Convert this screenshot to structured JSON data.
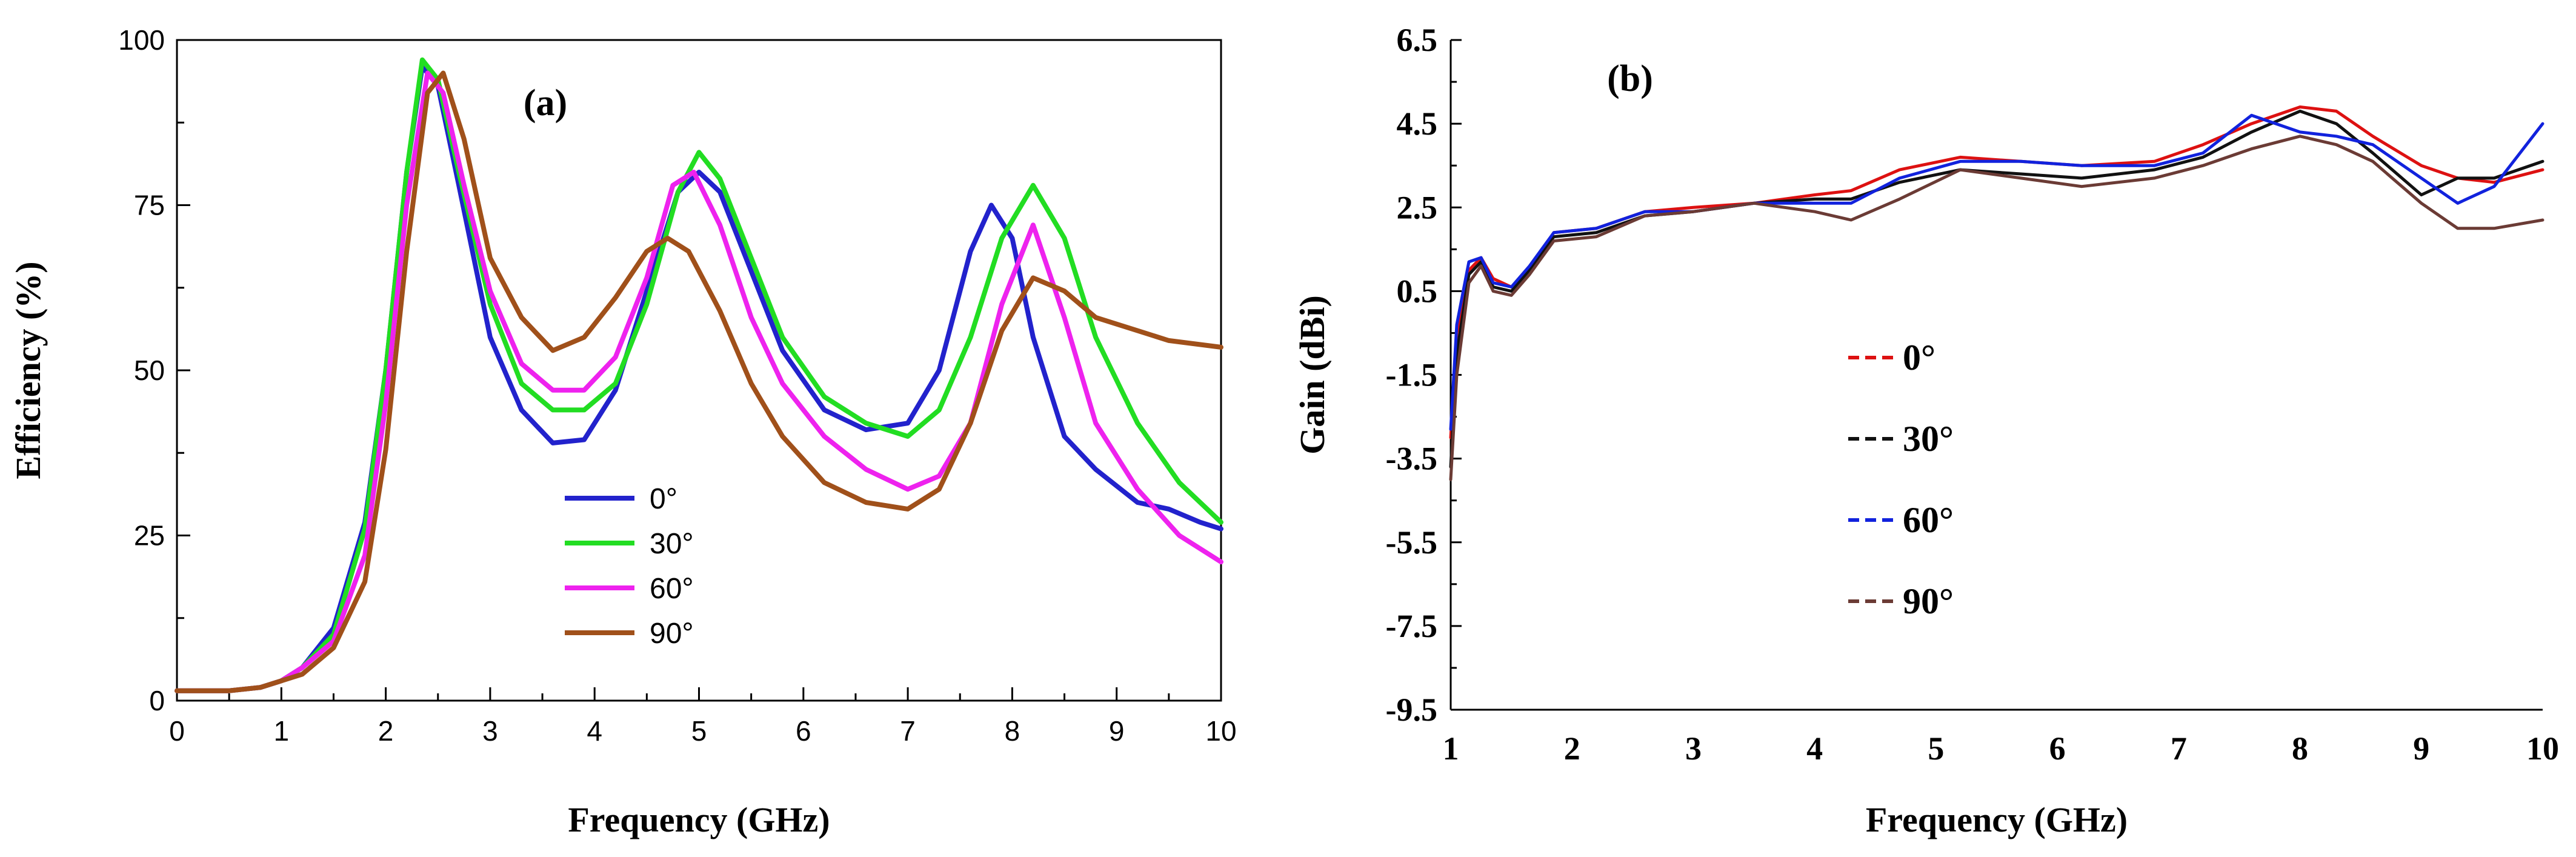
{
  "chart_data": [
    {
      "panel": "(a)",
      "type": "line",
      "xlabel": "Frequency (GHz)",
      "ylabel": "Efficiency (%)",
      "xlim": [
        0,
        10
      ],
      "ylim": [
        0,
        100
      ],
      "xticks": [
        "0",
        "1",
        "2",
        "3",
        "4",
        "5",
        "6",
        "7",
        "8",
        "9",
        "10"
      ],
      "yticks": [
        "0",
        "25",
        "50",
        "75",
        "100"
      ],
      "series": [
        {
          "name": "0°",
          "color": "#2222cc",
          "x": [
            0,
            0.5,
            0.8,
            1.0,
            1.2,
            1.5,
            1.8,
            2.0,
            2.2,
            2.35,
            2.5,
            2.7,
            3.0,
            3.3,
            3.6,
            3.9,
            4.2,
            4.5,
            4.8,
            5.0,
            5.2,
            5.5,
            5.8,
            6.2,
            6.6,
            7.0,
            7.3,
            7.6,
            7.8,
            8.0,
            8.2,
            8.5,
            8.8,
            9.2,
            9.5,
            9.8,
            10.0
          ],
          "y": [
            1.5,
            1.5,
            2,
            3,
            5,
            11,
            27,
            50,
            80,
            96,
            93,
            78,
            55,
            44,
            39,
            39.5,
            47,
            62,
            77,
            80,
            77,
            65,
            53,
            44,
            41,
            42,
            50,
            68,
            75,
            70,
            55,
            40,
            35,
            30,
            29,
            27,
            26
          ]
        },
        {
          "name": "30°",
          "color": "#22dd22",
          "x": [
            0,
            0.5,
            0.8,
            1.0,
            1.2,
            1.5,
            1.8,
            2.0,
            2.2,
            2.35,
            2.5,
            2.7,
            3.0,
            3.3,
            3.6,
            3.9,
            4.2,
            4.5,
            4.8,
            5.0,
            5.2,
            5.5,
            5.8,
            6.2,
            6.6,
            7.0,
            7.3,
            7.6,
            7.9,
            8.2,
            8.5,
            8.8,
            9.2,
            9.6,
            10.0
          ],
          "y": [
            1.5,
            1.5,
            2,
            3,
            5,
            10,
            26,
            50,
            80,
            97,
            94,
            80,
            60,
            48,
            44,
            44,
            48,
            60,
            77,
            83,
            79,
            67,
            55,
            46,
            42,
            40,
            44,
            55,
            70,
            78,
            70,
            55,
            42,
            33,
            27
          ]
        },
        {
          "name": "60°",
          "color": "#ee22ee",
          "x": [
            0,
            0.5,
            0.8,
            1.0,
            1.2,
            1.5,
            1.8,
            2.0,
            2.2,
            2.4,
            2.55,
            2.75,
            3.0,
            3.3,
            3.6,
            3.9,
            4.2,
            4.5,
            4.75,
            4.95,
            5.2,
            5.5,
            5.8,
            6.2,
            6.6,
            7.0,
            7.3,
            7.6,
            7.9,
            8.2,
            8.5,
            8.8,
            9.2,
            9.6,
            10.0
          ],
          "y": [
            1.5,
            1.5,
            2,
            3,
            5,
            9,
            22,
            45,
            75,
            95,
            92,
            78,
            62,
            51,
            47,
            47,
            52,
            64,
            78,
            80,
            72,
            58,
            48,
            40,
            35,
            32,
            34,
            42,
            60,
            72,
            58,
            42,
            32,
            25,
            21
          ]
        },
        {
          "name": "90°",
          "color": "#a0501a",
          "x": [
            0,
            0.5,
            0.8,
            1.0,
            1.2,
            1.5,
            1.8,
            2.0,
            2.2,
            2.4,
            2.55,
            2.75,
            3.0,
            3.3,
            3.6,
            3.9,
            4.2,
            4.5,
            4.7,
            4.9,
            5.2,
            5.5,
            5.8,
            6.2,
            6.6,
            7.0,
            7.3,
            7.6,
            7.9,
            8.2,
            8.5,
            8.8,
            9.2,
            9.5,
            10.0
          ],
          "y": [
            1.5,
            1.5,
            2,
            3,
            4,
            8,
            18,
            38,
            68,
            92,
            95,
            85,
            67,
            58,
            53,
            55,
            61,
            68,
            70,
            68,
            59,
            48,
            40,
            33,
            30,
            29,
            32,
            42,
            56,
            64,
            62,
            58,
            56,
            54.5,
            53.5
          ]
        }
      ],
      "legend": [
        "0°",
        "30°",
        "60°",
        "90°"
      ],
      "legend_position": "center"
    },
    {
      "panel": "(b)",
      "type": "line",
      "xlabel": "Frequency (GHz)",
      "ylabel": "Gain (dBi)",
      "xlim": [
        1,
        10
      ],
      "ylim": [
        -9.5,
        6.5
      ],
      "xticks": [
        "1",
        "2",
        "3",
        "4",
        "5",
        "6",
        "7",
        "8",
        "9",
        "10"
      ],
      "yticks": [
        "-9.5",
        "-7.5",
        "-5.5",
        "-3.5",
        "-1.5",
        "0.5",
        "2.5",
        "4.5",
        "6.5"
      ],
      "series": [
        {
          "name": "0°",
          "color": "#dd1111",
          "x": [
            1.0,
            1.05,
            1.15,
            1.25,
            1.35,
            1.5,
            1.65,
            1.85,
            2.2,
            2.6,
            3.0,
            3.5,
            4.0,
            4.3,
            4.7,
            5.2,
            5.7,
            6.2,
            6.8,
            7.2,
            7.6,
            8.0,
            8.3,
            8.6,
            9.0,
            9.3,
            9.6,
            10.0
          ],
          "y": [
            -3.0,
            -0.5,
            1.0,
            1.3,
            0.8,
            0.6,
            1.0,
            1.9,
            2.0,
            2.4,
            2.5,
            2.6,
            2.8,
            2.9,
            3.4,
            3.7,
            3.6,
            3.5,
            3.6,
            4.0,
            4.5,
            4.9,
            4.8,
            4.2,
            3.5,
            3.2,
            3.1,
            3.4
          ]
        },
        {
          "name": "30°",
          "color": "#111111",
          "x": [
            1.0,
            1.05,
            1.15,
            1.25,
            1.35,
            1.5,
            1.65,
            1.85,
            2.2,
            2.6,
            3.0,
            3.5,
            4.0,
            4.3,
            4.7,
            5.2,
            5.7,
            6.2,
            6.8,
            7.2,
            7.6,
            8.0,
            8.3,
            8.6,
            9.0,
            9.3,
            9.6,
            10.0
          ],
          "y": [
            -3.7,
            -1.0,
            0.9,
            1.2,
            0.6,
            0.5,
            1.0,
            1.8,
            1.9,
            2.3,
            2.4,
            2.6,
            2.7,
            2.7,
            3.1,
            3.4,
            3.3,
            3.2,
            3.4,
            3.7,
            4.3,
            4.8,
            4.5,
            3.8,
            2.8,
            3.2,
            3.2,
            3.6
          ]
        },
        {
          "name": "60°",
          "color": "#1122dd",
          "x": [
            1.0,
            1.05,
            1.15,
            1.25,
            1.35,
            1.5,
            1.65,
            1.85,
            2.2,
            2.6,
            3.0,
            3.5,
            4.0,
            4.3,
            4.7,
            5.2,
            5.7,
            6.2,
            6.8,
            7.2,
            7.6,
            8.0,
            8.3,
            8.6,
            9.0,
            9.3,
            9.6,
            10.0
          ],
          "y": [
            -2.8,
            -0.3,
            1.2,
            1.3,
            0.7,
            0.6,
            1.1,
            1.9,
            2.0,
            2.4,
            2.4,
            2.6,
            2.6,
            2.6,
            3.2,
            3.6,
            3.6,
            3.5,
            3.5,
            3.8,
            4.7,
            4.3,
            4.2,
            4.0,
            3.2,
            2.6,
            3.0,
            4.5
          ]
        },
        {
          "name": "90°",
          "color": "#6b3b35",
          "x": [
            1.0,
            1.05,
            1.15,
            1.25,
            1.35,
            1.5,
            1.65,
            1.85,
            2.2,
            2.6,
            3.0,
            3.5,
            4.0,
            4.3,
            4.7,
            5.2,
            5.7,
            6.2,
            6.8,
            7.2,
            7.6,
            8.0,
            8.3,
            8.6,
            9.0,
            9.3,
            9.6,
            10.0
          ],
          "y": [
            -4.0,
            -1.5,
            0.7,
            1.1,
            0.5,
            0.4,
            0.9,
            1.7,
            1.8,
            2.3,
            2.4,
            2.6,
            2.4,
            2.2,
            2.7,
            3.4,
            3.2,
            3.0,
            3.2,
            3.5,
            3.9,
            4.2,
            4.0,
            3.6,
            2.6,
            2.0,
            2.0,
            2.2
          ]
        }
      ],
      "legend": [
        "0°",
        "30°",
        "60°",
        "90°"
      ],
      "legend_position": "center-left"
    }
  ]
}
